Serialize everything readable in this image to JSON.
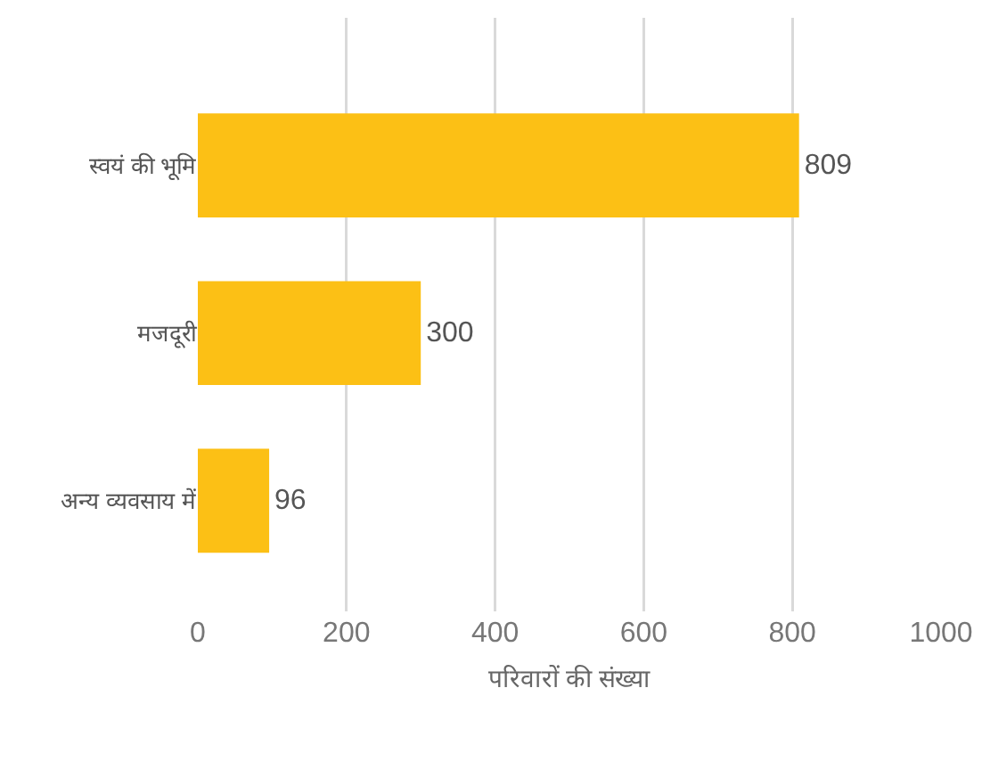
{
  "chart_data": {
    "type": "bar",
    "orientation": "horizontal",
    "xlabel": "परिवारों की संख्या",
    "categories": [
      "स्वयं की भूमि",
      "मजदूरी",
      "अन्य व्यवसाय में"
    ],
    "values": [
      809,
      300,
      96
    ],
    "color": "#fcc015",
    "xlim": [
      0,
      1000
    ],
    "xticks": [
      0,
      200,
      400,
      600,
      800,
      1000
    ],
    "grid": "x",
    "data_labels": true
  }
}
